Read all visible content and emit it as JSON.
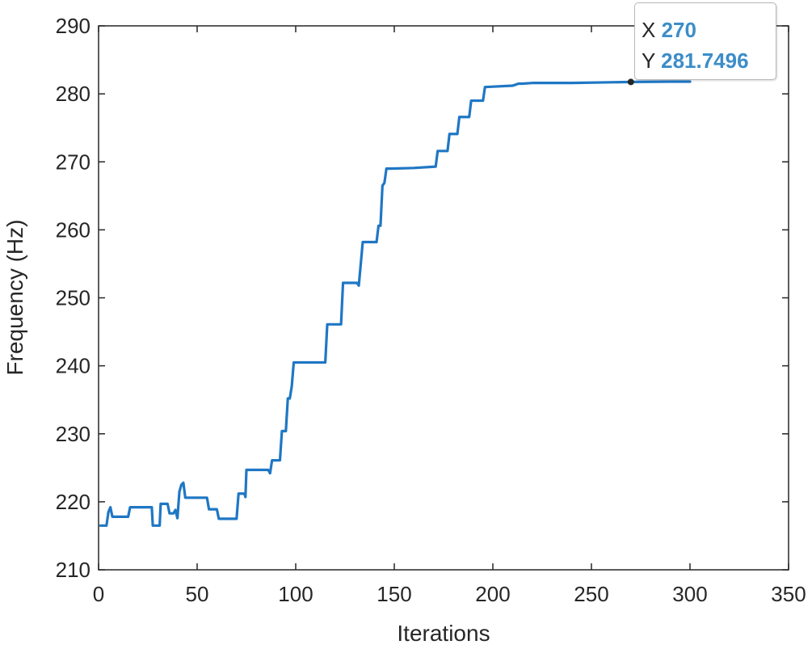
{
  "chart_data": {
    "type": "line",
    "xlabel": "Iterations",
    "ylabel": "Frequency (Hz)",
    "xlim": [
      0,
      350
    ],
    "ylim": [
      210,
      290
    ],
    "xticks": [
      0,
      50,
      100,
      150,
      200,
      250,
      300,
      350
    ],
    "yticks": [
      210,
      220,
      230,
      240,
      250,
      260,
      270,
      280,
      290
    ],
    "grid": false,
    "series": [
      {
        "color": "#1f77c4",
        "x": [
          1,
          4,
          5,
          6,
          7,
          12,
          15,
          16,
          27,
          27.5,
          31,
          31.5,
          35,
          36,
          38,
          39,
          40,
          41,
          42,
          43,
          44,
          55,
          56,
          60,
          61,
          67,
          68,
          70,
          71,
          74,
          74.5,
          75,
          86,
          87,
          88,
          92,
          93,
          95,
          96,
          97,
          98,
          99,
          100,
          101,
          102,
          115,
          116,
          123,
          124,
          131,
          132,
          134,
          135,
          141,
          142,
          143,
          144,
          145,
          146,
          147,
          148,
          160,
          171,
          172,
          177,
          178,
          182,
          183,
          188,
          189,
          195,
          196,
          210,
          211,
          212,
          213,
          215,
          220,
          240,
          260,
          270,
          290,
          300
        ],
        "y": [
          216.5,
          216.5,
          218.5,
          219.2,
          217.8,
          217.8,
          217.8,
          219.2,
          219.2,
          216.5,
          216.5,
          219.7,
          219.7,
          218.3,
          218.3,
          218.8,
          217.6,
          221.5,
          222.5,
          222.8,
          220.6,
          220.6,
          218.9,
          218.9,
          217.5,
          217.5,
          217.5,
          217.5,
          221.2,
          221.2,
          220.7,
          224.7,
          224.7,
          224.2,
          226.1,
          226.1,
          230.4,
          230.4,
          235.2,
          235.2,
          237.0,
          240.5,
          240.5,
          240.5,
          240.5,
          240.5,
          246.1,
          246.1,
          252.2,
          252.2,
          251.8,
          258.2,
          258.2,
          258.2,
          260.6,
          260.6,
          266.5,
          266.9,
          269.0,
          269.0,
          269.0,
          269.1,
          269.3,
          271.6,
          271.6,
          274.1,
          274.1,
          276.6,
          276.6,
          279.0,
          279.0,
          281.0,
          281.2,
          281.3,
          281.4,
          281.5,
          281.5,
          281.6,
          281.6,
          281.7,
          281.75,
          281.8,
          281.8
        ]
      }
    ],
    "datatip": {
      "x_label": "X",
      "x_value": "270",
      "y_label": "Y",
      "y_value": "281.7496",
      "x": 270,
      "y": 281.7496
    }
  }
}
